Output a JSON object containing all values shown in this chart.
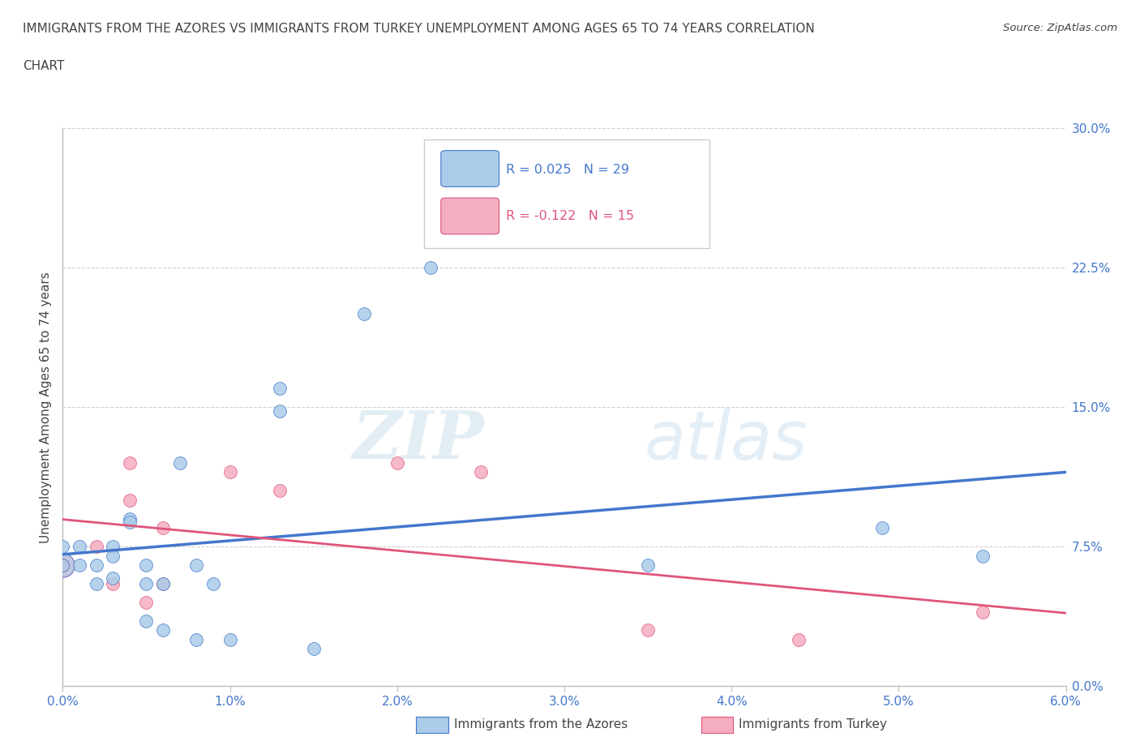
{
  "title_line1": "IMMIGRANTS FROM THE AZORES VS IMMIGRANTS FROM TURKEY UNEMPLOYMENT AMONG AGES 65 TO 74 YEARS CORRELATION",
  "title_line2": "CHART",
  "source_text": "Source: ZipAtlas.com",
  "ylabel": "Unemployment Among Ages 65 to 74 years",
  "xlim": [
    0.0,
    0.06
  ],
  "ylim": [
    0.0,
    0.3
  ],
  "xtick_labels": [
    "0.0%",
    "1.0%",
    "2.0%",
    "3.0%",
    "4.0%",
    "5.0%",
    "6.0%"
  ],
  "ytick_labels": [
    "0.0%",
    "7.5%",
    "15.0%",
    "22.5%",
    "30.0%"
  ],
  "ytick_positions": [
    0.0,
    0.075,
    0.15,
    0.225,
    0.3
  ],
  "xtick_positions": [
    0.0,
    0.01,
    0.02,
    0.03,
    0.04,
    0.05,
    0.06
  ],
  "azores_color": "#aacce8",
  "turkey_color": "#f5adc0",
  "azores_line_color": "#4477cc",
  "turkey_line_color": "#e0557a",
  "legend_R_azores": "R = 0.025",
  "legend_N_azores": "N = 29",
  "legend_R_turkey": "R = -0.122",
  "legend_N_turkey": "N = 15",
  "watermark_zip": "ZIP",
  "watermark_atlas": "atlas",
  "azores_x": [
    0.0,
    0.0,
    0.001,
    0.001,
    0.002,
    0.002,
    0.003,
    0.003,
    0.003,
    0.004,
    0.004,
    0.005,
    0.005,
    0.005,
    0.006,
    0.006,
    0.007,
    0.008,
    0.008,
    0.009,
    0.01,
    0.013,
    0.013,
    0.015,
    0.018,
    0.022,
    0.035,
    0.049,
    0.055
  ],
  "azores_y": [
    0.075,
    0.065,
    0.075,
    0.065,
    0.065,
    0.055,
    0.075,
    0.07,
    0.058,
    0.09,
    0.088,
    0.065,
    0.055,
    0.035,
    0.055,
    0.03,
    0.12,
    0.065,
    0.025,
    0.055,
    0.025,
    0.16,
    0.148,
    0.02,
    0.2,
    0.225,
    0.065,
    0.085,
    0.07
  ],
  "turkey_x": [
    0.0,
    0.002,
    0.003,
    0.004,
    0.004,
    0.005,
    0.006,
    0.006,
    0.01,
    0.013,
    0.02,
    0.025,
    0.035,
    0.044,
    0.055
  ],
  "turkey_y": [
    0.065,
    0.075,
    0.055,
    0.12,
    0.1,
    0.045,
    0.085,
    0.055,
    0.115,
    0.105,
    0.12,
    0.115,
    0.03,
    0.025,
    0.04
  ],
  "azores_large_x": [
    0.0
  ],
  "azores_large_y": [
    0.065
  ],
  "turkey_large_x": [
    0.0
  ],
  "turkey_large_y": [
    0.065
  ],
  "background_color": "#ffffff",
  "grid_color": "#d0d0d0",
  "marker_size": 130,
  "marker_size_large": 450,
  "title_color": "#444444",
  "axis_color": "#bbbbbb",
  "tick_color": "#4477cc"
}
